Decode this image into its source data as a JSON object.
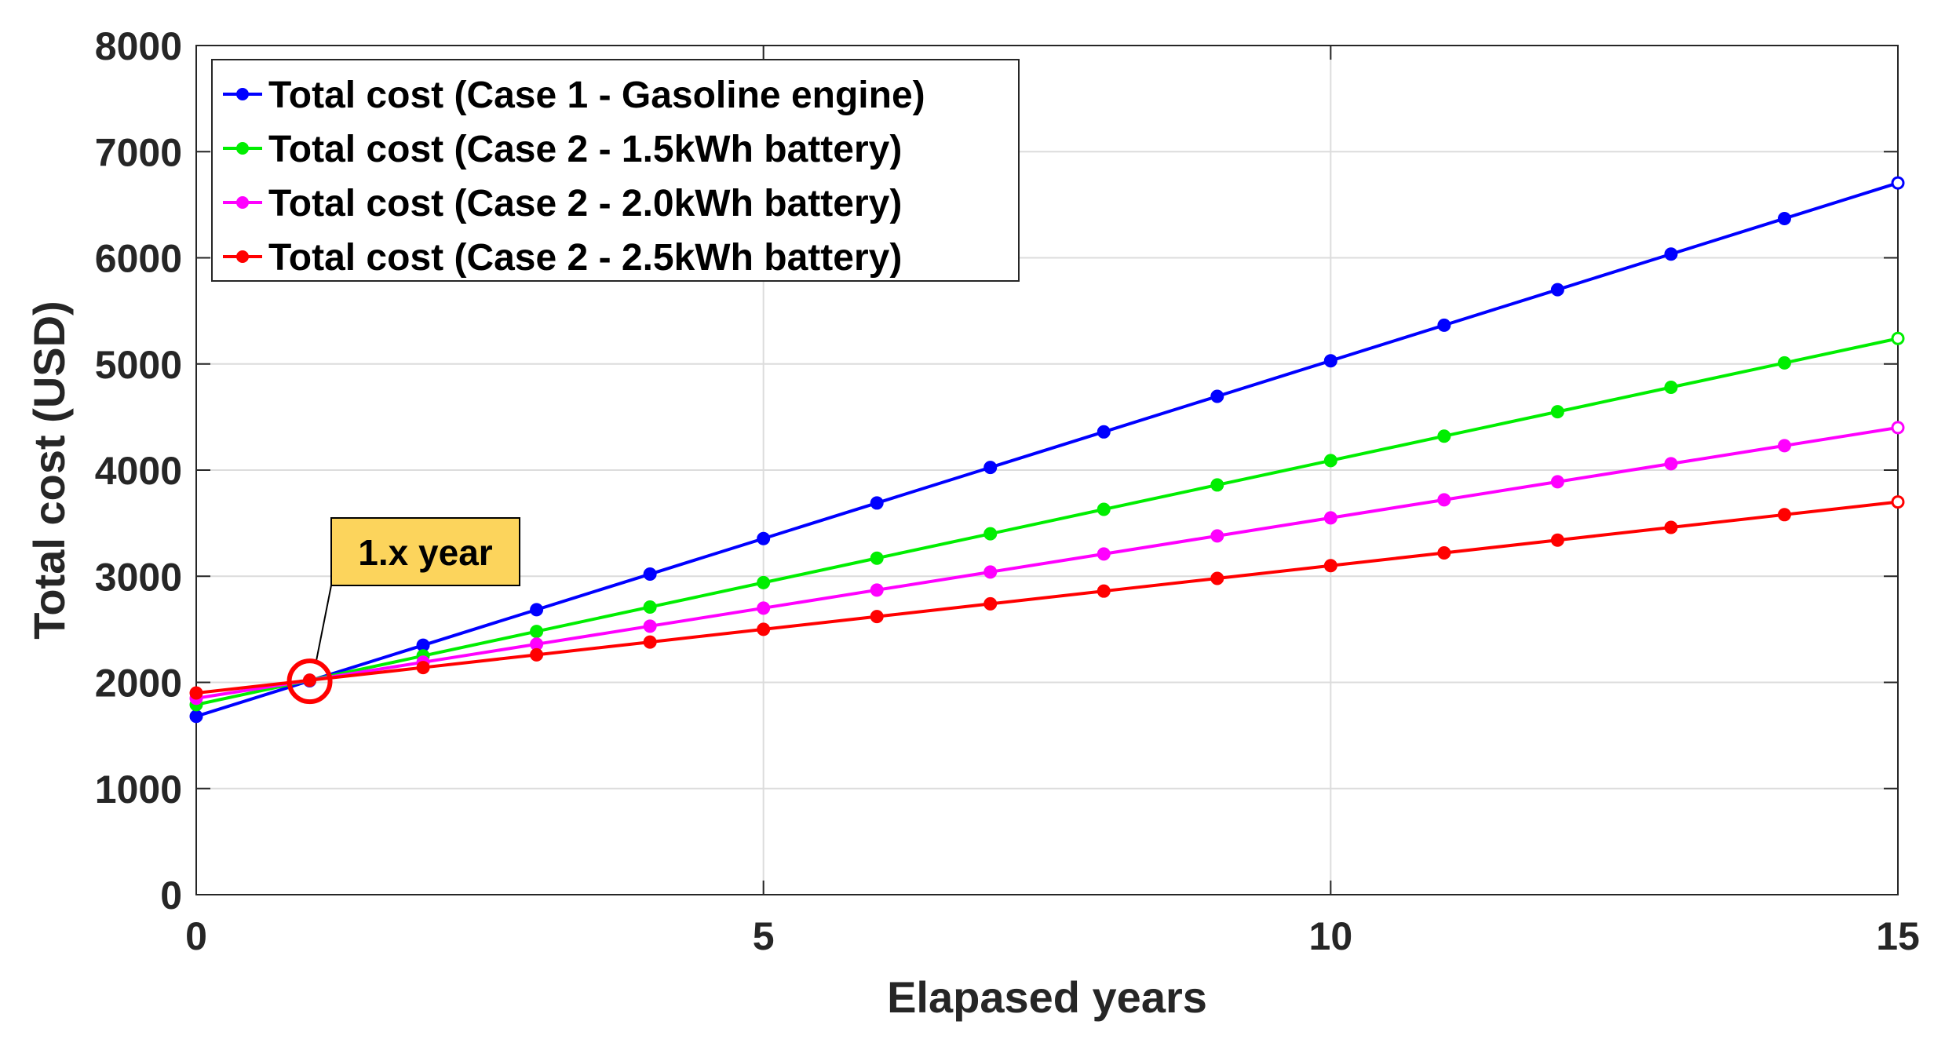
{
  "chart_data": {
    "type": "line",
    "title": "",
    "xlabel": "Elapased years",
    "ylabel": "Total cost (USD)",
    "xlim": [
      0,
      15
    ],
    "ylim": [
      0,
      8000
    ],
    "xticks": [
      0,
      5,
      10,
      15
    ],
    "yticks": [
      0,
      1000,
      2000,
      3000,
      4000,
      5000,
      6000,
      7000,
      8000
    ],
    "grid": true,
    "legend_position": "top-left",
    "x": [
      0,
      1,
      2,
      3,
      4,
      5,
      6,
      7,
      8,
      9,
      10,
      11,
      12,
      13,
      14,
      15
    ],
    "series": [
      {
        "name": "Total cost (Case 1 - Gasoline engine)",
        "color": "#0000ff",
        "values": [
          1680,
          2015,
          2350,
          2685,
          3020,
          3355,
          3690,
          4025,
          4360,
          4695,
          5030,
          5365,
          5700,
          6035,
          6370,
          6705
        ]
      },
      {
        "name": "Total cost (Case 2 - 1.5kWh battery)",
        "color": "#00ee00",
        "values": [
          1790,
          2020,
          2250,
          2480,
          2710,
          2940,
          3170,
          3400,
          3630,
          3860,
          4090,
          4320,
          4550,
          4780,
          5010,
          5240
        ]
      },
      {
        "name": "Total cost (Case 2 - 2.0kWh battery)",
        "color": "#ff00ff",
        "values": [
          1850,
          2020,
          2190,
          2360,
          2530,
          2700,
          2870,
          3040,
          3210,
          3380,
          3550,
          3720,
          3890,
          4060,
          4230,
          4400
        ]
      },
      {
        "name": "Total cost (Case 2 - 2.5kWh battery)",
        "color": "#ff0000",
        "values": [
          1900,
          2020,
          2140,
          2260,
          2380,
          2500,
          2620,
          2740,
          2860,
          2980,
          3100,
          3220,
          3340,
          3460,
          3580,
          3700
        ]
      }
    ],
    "annotations": [
      {
        "text": "1.x year",
        "point": [
          1,
          2010
        ],
        "box_color": "#fcd45c",
        "marker_color": "#ff0000"
      }
    ]
  }
}
